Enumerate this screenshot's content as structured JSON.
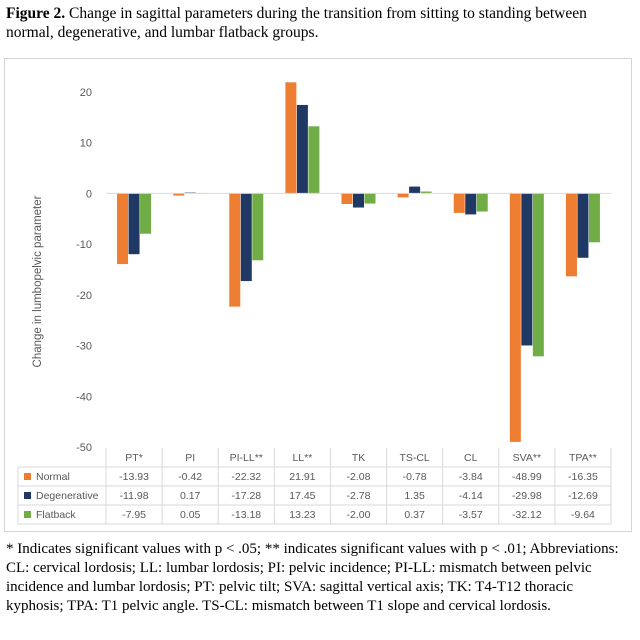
{
  "caption": {
    "label": "Figure 2.",
    "text": " Change in sagittal parameters during the transition from sitting to standing between normal, degenerative, and lumbar flatback groups."
  },
  "footnote": "* Indicates significant values with p < .05; ** indicates significant values with p < .01; Abbreviations: CL: cervical lordosis; LL: lumbar lordosis; PI: pelvic incidence; PI-LL: mismatch between pelvic incidence and lumbar lordosis; PT: pelvic tilt; SVA: sagittal vertical axis; TK: T4-T12 thoracic kyphosis; TPA: T1 pelvic angle. TS-CL: mismatch between T1 slope and cervical lordosis.",
  "chart_data": {
    "type": "bar",
    "ylabel": "Change in lumbopelvic parameter",
    "ylim": [
      -50,
      20
    ],
    "yticks": [
      20,
      10,
      0,
      -10,
      -20,
      -30,
      -40,
      -50
    ],
    "grid": false,
    "legend": "data-table",
    "categories": [
      "PT*",
      "PI",
      "PI-LL**",
      "LL**",
      "TK",
      "TS-CL",
      "CL",
      "SVA**",
      "TPA**"
    ],
    "series": [
      {
        "name": "Normal",
        "color": "#ED7D31",
        "values": [
          -13.93,
          -0.42,
          -22.32,
          21.91,
          -2.08,
          -0.78,
          -3.84,
          -48.99,
          -16.35
        ],
        "labels": [
          "-13.93",
          "-0.42",
          "-22.32",
          "21.91",
          "-2.08",
          "-0.78",
          "-3.84",
          "-48.99",
          "-16.35"
        ]
      },
      {
        "name": "Degenerative",
        "color": "#203864",
        "values": [
          -11.98,
          0.17,
          -17.28,
          17.45,
          -2.78,
          1.35,
          -4.14,
          -29.98,
          -12.69
        ],
        "labels": [
          "-11.98",
          "0.17",
          "-17.28",
          "17.45",
          "-2.78",
          "1.35",
          "-4.14",
          "-29.98",
          "-12.69"
        ]
      },
      {
        "name": "Flatback",
        "color": "#70AD47",
        "values": [
          -7.95,
          0.05,
          -13.18,
          13.23,
          -2.0,
          0.37,
          -3.57,
          -32.12,
          -9.64
        ],
        "labels": [
          "-7.95",
          "0.05",
          "-13.18",
          "13.23",
          "-2.00",
          "0.37",
          "-3.57",
          "-32.12",
          "-9.64"
        ]
      }
    ]
  }
}
